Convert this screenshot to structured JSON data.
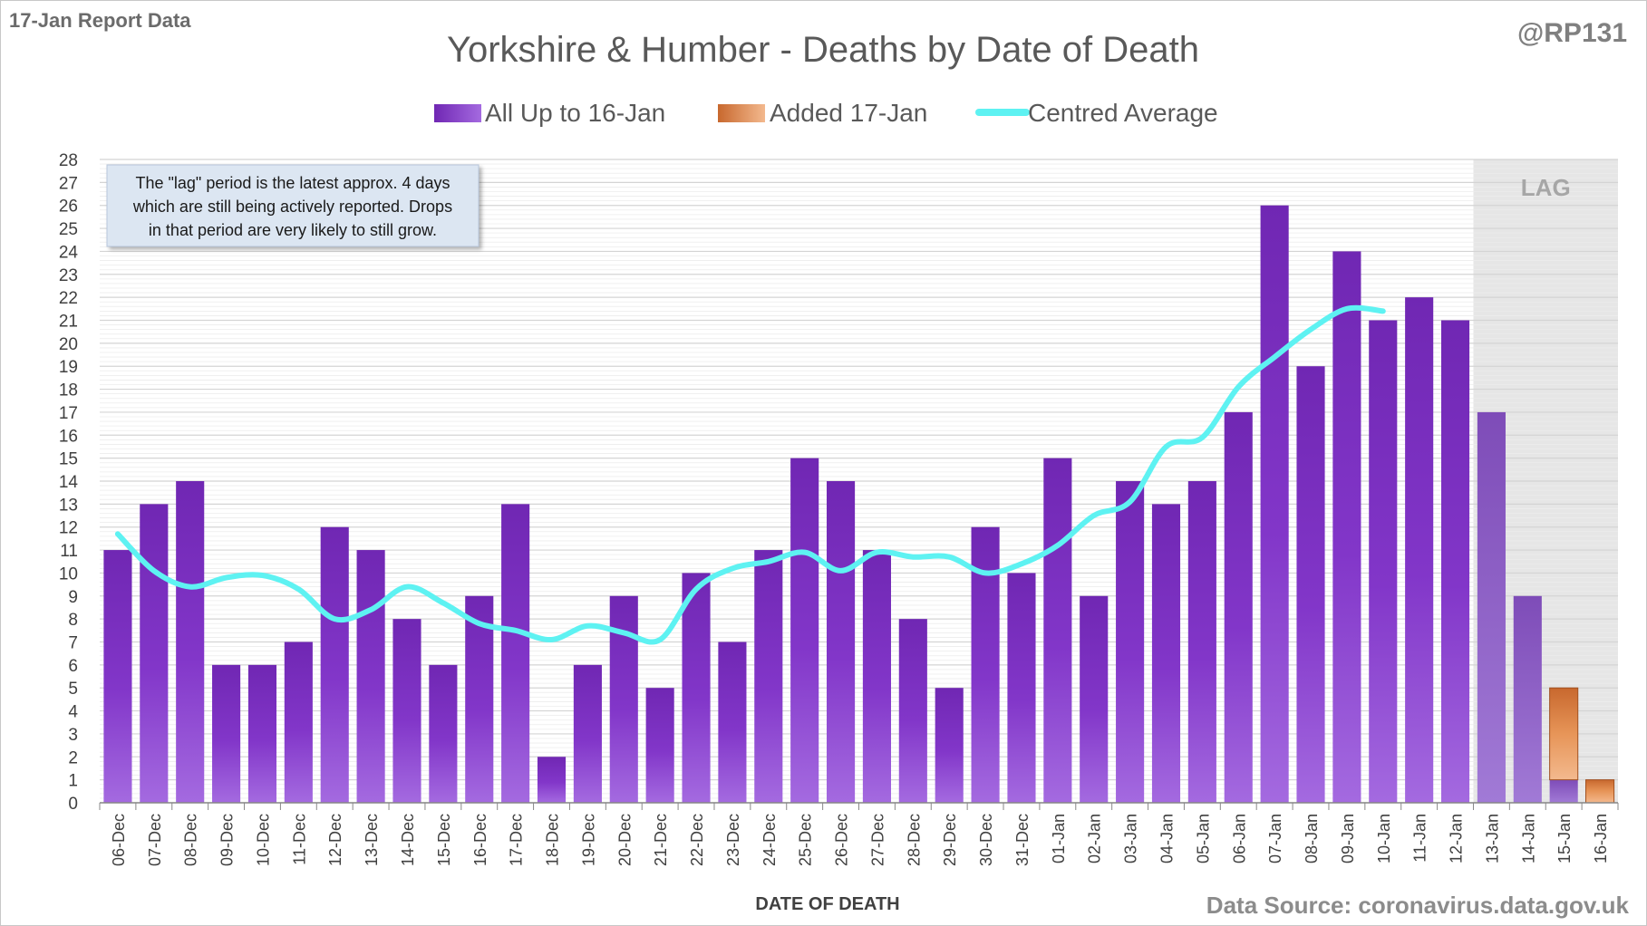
{
  "header": {
    "report_label": "17-Jan Report Data",
    "handle": "@RP131",
    "source": "Data Source: coronavirus.data.gov.uk"
  },
  "note": {
    "lines": [
      "The \"lag\" period is the latest approx. 4 days",
      "which are still being actively reported.  Drops",
      "in that period are very likely to still grow."
    ]
  },
  "lag_label": "LAG",
  "colors": {
    "base_bar": "#7b2cbf",
    "lag_bar": "#8a4fc4",
    "added_bar": "#e08040",
    "average_line": "#5ef2f2",
    "lag_shade": "#e6e6e6"
  },
  "chart_data": {
    "type": "bar",
    "title": "Yorkshire & Humber - Deaths by Date of Death",
    "xlabel": "DATE OF DEATH",
    "ylabel": "",
    "ylim": [
      0,
      28
    ],
    "yticks": [
      0,
      1,
      2,
      3,
      4,
      5,
      6,
      7,
      8,
      9,
      10,
      11,
      12,
      13,
      14,
      15,
      16,
      17,
      18,
      19,
      20,
      21,
      22,
      23,
      24,
      25,
      26,
      27,
      28
    ],
    "grid": true,
    "legend_position": "top",
    "stacked": true,
    "categories": [
      "06-Dec",
      "07-Dec",
      "08-Dec",
      "09-Dec",
      "10-Dec",
      "11-Dec",
      "12-Dec",
      "13-Dec",
      "14-Dec",
      "15-Dec",
      "16-Dec",
      "17-Dec",
      "18-Dec",
      "19-Dec",
      "20-Dec",
      "21-Dec",
      "22-Dec",
      "23-Dec",
      "24-Dec",
      "25-Dec",
      "26-Dec",
      "27-Dec",
      "28-Dec",
      "29-Dec",
      "30-Dec",
      "31-Dec",
      "01-Jan",
      "02-Jan",
      "03-Jan",
      "04-Jan",
      "05-Jan",
      "06-Jan",
      "07-Jan",
      "08-Jan",
      "09-Jan",
      "10-Jan",
      "11-Jan",
      "12-Jan",
      "13-Jan",
      "14-Jan",
      "15-Jan",
      "16-Jan"
    ],
    "lag_categories": [
      "13-Jan",
      "14-Jan",
      "15-Jan",
      "16-Jan"
    ],
    "series": [
      {
        "name": "All Up to 16-Jan",
        "kind": "bar",
        "values": [
          11,
          13,
          14,
          6,
          6,
          7,
          12,
          11,
          8,
          6,
          9,
          13,
          2,
          6,
          9,
          5,
          10,
          7,
          11,
          15,
          14,
          11,
          8,
          5,
          12,
          10,
          15,
          9,
          14,
          13,
          14,
          17,
          26,
          19,
          24,
          21,
          22,
          21,
          17,
          9,
          1,
          0
        ]
      },
      {
        "name": "Added 17-Jan",
        "kind": "bar",
        "values": [
          0,
          0,
          0,
          0,
          0,
          0,
          0,
          0,
          0,
          0,
          0,
          0,
          0,
          0,
          0,
          0,
          0,
          0,
          0,
          0,
          0,
          0,
          0,
          0,
          0,
          0,
          0,
          0,
          0,
          0,
          0,
          0,
          0,
          0,
          0,
          0,
          0,
          0,
          0,
          0,
          4,
          1
        ]
      },
      {
        "name": "Centred Average",
        "kind": "line",
        "values": [
          11.7,
          10.1,
          9.4,
          9.8,
          9.9,
          9.3,
          8.0,
          8.4,
          9.4,
          8.7,
          7.8,
          7.5,
          7.1,
          7.7,
          7.4,
          7.1,
          9.3,
          10.2,
          10.5,
          10.9,
          10.1,
          10.9,
          10.7,
          10.7,
          10.0,
          10.4,
          11.2,
          12.5,
          13.1,
          15.5,
          15.9,
          18.1,
          19.4,
          20.6,
          21.5,
          21.4,
          null,
          null,
          null,
          null,
          null,
          null
        ]
      }
    ]
  }
}
